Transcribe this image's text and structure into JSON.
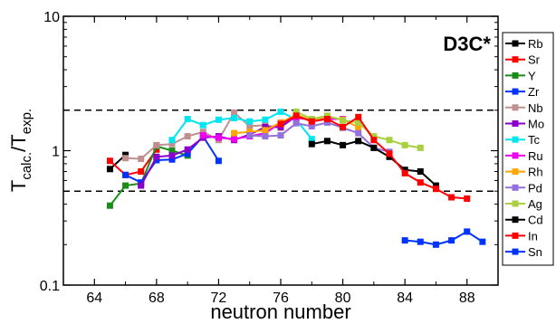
{
  "chart_data": {
    "type": "line",
    "annotation": "D3C*",
    "xlabel": "neutron number",
    "ylabel_main": "T",
    "ylabel_sub1": "calc.",
    "ylabel_slash": "/T",
    "ylabel_sub2": "exp.",
    "xlim": [
      62,
      90
    ],
    "ylim": [
      0.1,
      10
    ],
    "yscale": "log",
    "xticks": [
      64,
      68,
      72,
      76,
      80,
      84,
      88
    ],
    "xtick_labels": [
      "64",
      "68",
      "72",
      "76",
      "80",
      "84",
      "88"
    ],
    "yticks": [
      0.1,
      1,
      10
    ],
    "ytick_labels": [
      "0.1",
      "1",
      "10"
    ],
    "reference_lines": [
      2,
      0.5
    ],
    "grid": false,
    "legend_position": "right",
    "series": [
      {
        "name": "Rb",
        "color": "#000000",
        "x": [
          65,
          66
        ],
        "y": [
          0.73,
          0.93
        ]
      },
      {
        "name": "Sr",
        "color": "#ff0000",
        "x": [
          65,
          66,
          67,
          68
        ],
        "y": [
          0.84,
          0.66,
          0.7,
          1.02
        ]
      },
      {
        "name": "Y",
        "color": "#1a8c1a",
        "x": [
          65,
          66,
          67,
          68,
          69,
          70
        ],
        "y": [
          0.39,
          0.55,
          0.57,
          1.08,
          1.0,
          0.92
        ]
      },
      {
        "name": "Zr",
        "color": "#0033ff",
        "x": [
          66,
          67,
          68,
          69,
          70,
          71,
          72
        ],
        "y": [
          0.66,
          0.58,
          0.85,
          0.86,
          0.95,
          1.28,
          0.84
        ]
      },
      {
        "name": "Nb",
        "color": "#c09090",
        "x": [
          66,
          67,
          68,
          69,
          70,
          71,
          72,
          73,
          74,
          75,
          76,
          77
        ],
        "y": [
          0.88,
          0.87,
          1.1,
          1.12,
          1.28,
          1.38,
          1.2,
          1.92,
          1.52,
          1.55,
          1.48,
          1.9
        ]
      },
      {
        "name": "Mo",
        "color": "#8a00c8",
        "x": [
          67,
          68,
          69,
          70,
          71,
          72,
          73,
          74,
          75,
          76,
          77
        ],
        "y": [
          0.55,
          0.9,
          0.92,
          1.02,
          1.25,
          1.28,
          1.2,
          1.32,
          1.5,
          1.5,
          1.8
        ]
      },
      {
        "name": "Tc",
        "color": "#00e5ee",
        "x": [
          69,
          70,
          71,
          72,
          73,
          74,
          75,
          76,
          77,
          78
        ],
        "y": [
          1.2,
          1.72,
          1.55,
          1.7,
          1.75,
          1.65,
          1.7,
          1.95,
          1.7,
          1.22
        ]
      },
      {
        "name": "Ru",
        "color": "#ee00ee",
        "x": [
          71,
          72,
          73,
          74,
          75,
          76,
          77,
          78,
          79,
          80
        ],
        "y": [
          1.3,
          1.25,
          1.22,
          1.28,
          1.35,
          1.62,
          1.75,
          1.7,
          1.72,
          1.72
        ]
      },
      {
        "name": "Rh",
        "color": "#ffa500",
        "x": [
          73,
          74,
          75,
          76,
          77,
          78,
          79,
          80,
          81
        ],
        "y": [
          1.35,
          1.38,
          1.42,
          1.62,
          1.85,
          1.68,
          1.8,
          1.7,
          1.5
        ]
      },
      {
        "name": "Pd",
        "color": "#9370db",
        "x": [
          74,
          75,
          76,
          77,
          78,
          79,
          80,
          81,
          82,
          83
        ],
        "y": [
          1.3,
          1.28,
          1.3,
          1.6,
          1.52,
          1.62,
          1.48,
          1.35,
          1.05,
          0.98
        ]
      },
      {
        "name": "Ag",
        "color": "#a8d040",
        "x": [
          77,
          78,
          79,
          80,
          81,
          82,
          83,
          84,
          85
        ],
        "y": [
          1.95,
          1.72,
          1.82,
          1.68,
          1.62,
          1.28,
          1.2,
          1.1,
          1.05
        ]
      },
      {
        "name": "Cd",
        "color": "#000000",
        "x": [
          78,
          79,
          80,
          81,
          82,
          83,
          84,
          85,
          86
        ],
        "y": [
          1.12,
          1.18,
          1.1,
          1.18,
          1.05,
          0.9,
          0.72,
          0.7,
          0.55
        ]
      },
      {
        "name": "In",
        "color": "#ff0000",
        "x": [
          76,
          77,
          78,
          79,
          80,
          81,
          82,
          83,
          84,
          85,
          86,
          87,
          88
        ],
        "y": [
          1.58,
          1.82,
          1.65,
          1.72,
          1.5,
          1.78,
          1.2,
          0.95,
          0.68,
          0.58,
          0.52,
          0.45,
          0.44
        ]
      },
      {
        "name": "Sn",
        "color": "#0033ff",
        "x": [
          84,
          85,
          86,
          87,
          88,
          89
        ],
        "y": [
          0.215,
          0.21,
          0.2,
          0.215,
          0.25,
          0.21
        ]
      }
    ]
  }
}
